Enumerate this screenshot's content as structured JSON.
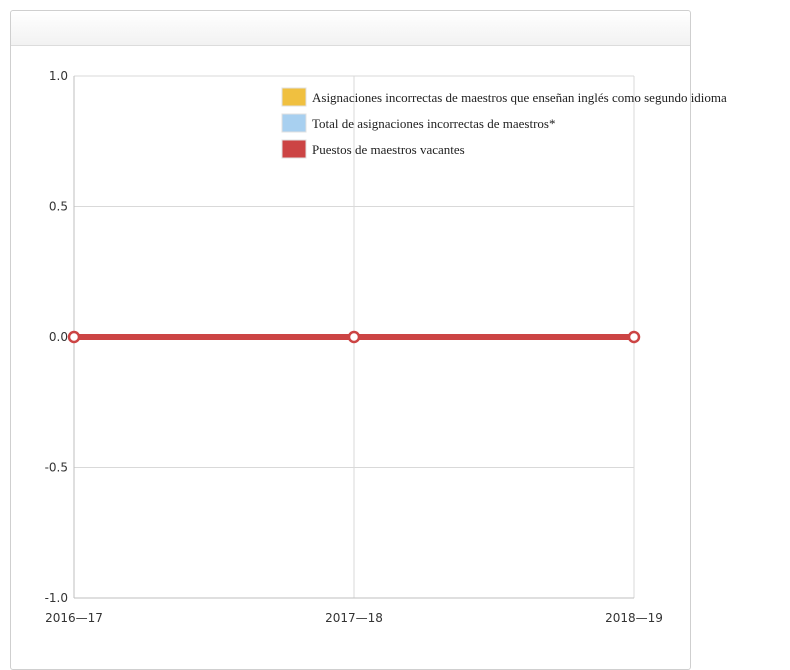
{
  "chart_data": {
    "type": "line",
    "title": "",
    "xlabel": "",
    "ylabel": "",
    "categories": [
      "2016—17",
      "2017—18",
      "2018—19"
    ],
    "ylim": [
      -1.0,
      1.0
    ],
    "yticks": [
      "1.0",
      "0.5",
      "0.0",
      "-0.5",
      "-1.0"
    ],
    "ytick_values": [
      1.0,
      0.5,
      0.0,
      -0.5,
      -1.0
    ],
    "grid": true,
    "legend_position": "top-right",
    "series": [
      {
        "name": "Asignaciones incorrectas de maestros que enseñan inglés como segundo idioma",
        "color": "#f0c040",
        "values": [
          0,
          0,
          0
        ]
      },
      {
        "name": "Total de asignaciones incorrectas de maestros*",
        "color": "#a8d0f0",
        "values": [
          0,
          0,
          0
        ]
      },
      {
        "name": "Puestos de maestros vacantes",
        "color": "#cc4444",
        "values": [
          0,
          0,
          0
        ]
      }
    ]
  }
}
